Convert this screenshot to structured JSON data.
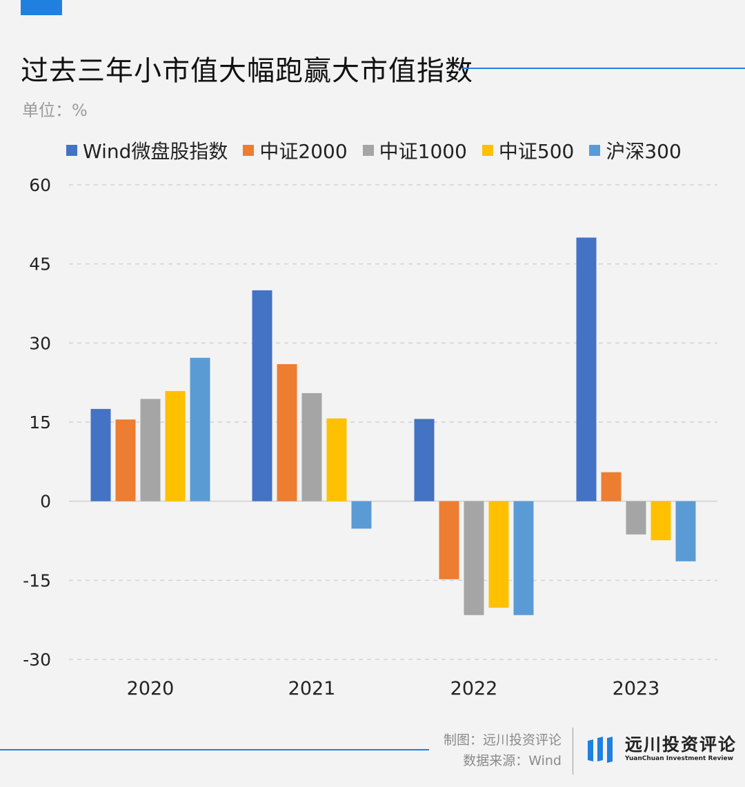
{
  "header": {
    "title": "过去三年小市值大幅跑赢大市值指数",
    "unit": "单位：%"
  },
  "colors": {
    "accent": "#1f80e0",
    "grid": "#d2d2d2",
    "series": [
      "#4472c4",
      "#ed7d31",
      "#a5a5a5",
      "#ffc000",
      "#5b9bd5"
    ]
  },
  "chart_data": {
    "type": "bar",
    "title": "过去三年小市值大幅跑赢大市值指数",
    "ylabel": "单位：%",
    "xlabel": "",
    "categories": [
      "2020",
      "2021",
      "2022",
      "2023"
    ],
    "ylim": [
      -30,
      60
    ],
    "yticks": [
      60,
      45,
      30,
      15,
      0,
      -15,
      -30
    ],
    "grid": true,
    "legend_position": "top",
    "series": [
      {
        "name": "Wind微盘股指数",
        "values": [
          17.5,
          40,
          15.6,
          50
        ]
      },
      {
        "name": "中证2000",
        "values": [
          15.5,
          26,
          -14.8,
          5.5
        ]
      },
      {
        "name": "中证1000",
        "values": [
          19.4,
          20.5,
          -21.6,
          -6.3
        ]
      },
      {
        "name": "中证500",
        "values": [
          20.9,
          15.7,
          -20.2,
          -7.4
        ]
      },
      {
        "name": "沪深300",
        "values": [
          27.2,
          -5.2,
          -21.6,
          -11.4
        ]
      }
    ]
  },
  "footer": {
    "credit_line1": "制图：远川投资评论",
    "credit_line2": "数据来源：Wind",
    "brand_name": "远川投资评论",
    "brand_en": "YuanChuan Investment Review",
    "logo_icon": "bars-logo-icon"
  }
}
